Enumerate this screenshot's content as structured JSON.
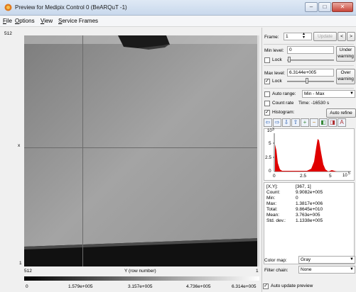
{
  "window": {
    "title": "Preview for Medipix Control 0 (BeARQuT -1)",
    "minimize": "–",
    "maximize": "□",
    "close": "✕"
  },
  "menu": [
    "File",
    "Options",
    "View",
    "Service Frames"
  ],
  "image": {
    "y_top_label": "512",
    "x_marker": "x",
    "y_bottom_label": "1",
    "x_left_label": "512",
    "x_axis_title": "Y (row number)",
    "x_right_label": "1"
  },
  "colorbar": {
    "ticks": [
      "0",
      "1.579e+005",
      "3.157e+005",
      "4.736e+005",
      "6.314e+005"
    ]
  },
  "frame": {
    "label": "Frame:",
    "value": "1",
    "update": "Update",
    "prev": "<",
    "next": ">"
  },
  "min_level": {
    "label": "Min level:",
    "value": "0",
    "lock": "Lock",
    "under": "Under",
    "warning": "warning"
  },
  "max_level": {
    "label": "Max level:",
    "value": "6.3144e+005",
    "lock": "Lock",
    "over": "Over",
    "warning": "warning"
  },
  "auto_range": {
    "label": "Auto range:",
    "value": "Min - Max"
  },
  "count_rate": {
    "label": "Count rate",
    "time": "Time: -16530 s"
  },
  "histogram": {
    "label": "Histogram:",
    "auto_refine": "Auto refine",
    "y_exp": "3",
    "y_ticks": [
      "5",
      "2.5",
      "0"
    ],
    "x_ticks": [
      "0",
      "2.5",
      "5"
    ],
    "x_exp": "5",
    "x_prefix": "10",
    "y_prefix": "10"
  },
  "stats": [
    {
      "label": "[X,Y]:",
      "value": "[367, 1]"
    },
    {
      "label": "Count:",
      "value": "9.9082e+005"
    },
    {
      "label": "Min:",
      "value": "0"
    },
    {
      "label": "Max:",
      "value": "1.3817e+006"
    },
    {
      "label": "Total:",
      "value": "9.8645e+010"
    },
    {
      "label": "Mean:",
      "value": "3.763e+005"
    },
    {
      "label": "Std. dev.:",
      "value": "1.1338e+005"
    }
  ],
  "color_map": {
    "label": "Color map:",
    "value": "Gray"
  },
  "filter_chain": {
    "label": "Filter chain:",
    "value": "None"
  },
  "auto_update": {
    "label": "Auto update preview"
  },
  "colors": {
    "accent": "#2b5fb0",
    "histogram": "#e00000"
  }
}
